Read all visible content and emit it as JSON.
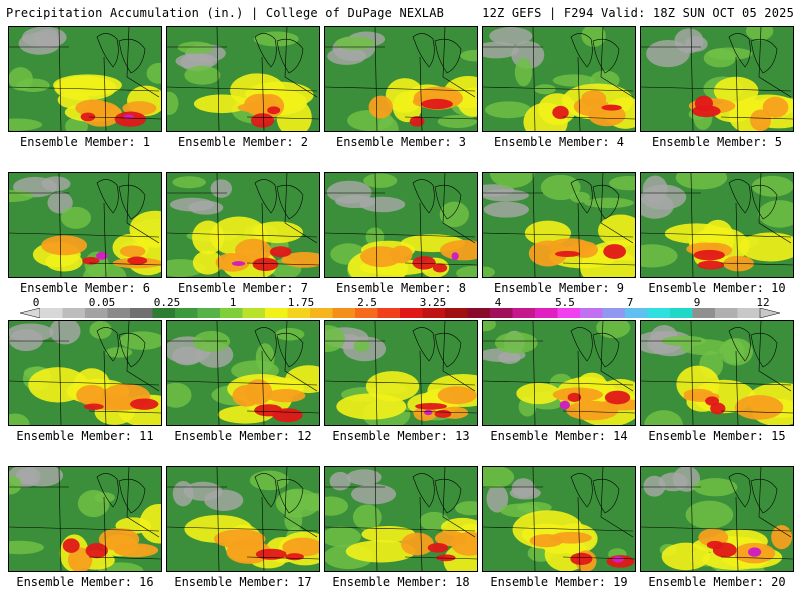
{
  "header": {
    "left": "Precipitation Accumulation (in.) | College of DuPage NEXLAB",
    "right": "12Z GEFS | F294 Valid: 18Z SUN OCT 05 2025"
  },
  "colorbar": {
    "labels": [
      "0",
      "0.05",
      "0.25",
      "1",
      "1.75",
      "2.5",
      "3.25",
      "4",
      "5.5",
      "7",
      "9",
      "12"
    ],
    "colors": [
      "#d8d8d8",
      "#bdbdbd",
      "#a3a3a3",
      "#8a8a8a",
      "#707070",
      "#2f7d32",
      "#3d9a3c",
      "#55b34a",
      "#7fcf3a",
      "#b8e32a",
      "#f2f21a",
      "#f5d31c",
      "#f5b51c",
      "#f58f1c",
      "#f56a1c",
      "#f0401c",
      "#e01818",
      "#c01414",
      "#a01010",
      "#8a0a2a",
      "#a0105a",
      "#c4188c",
      "#e020c0",
      "#f040f0",
      "#c070f0",
      "#9098f0",
      "#60c0f0",
      "#30e0e0",
      "#20d8c8",
      "#909090",
      "#b0b0b0",
      "#c8c8c8"
    ]
  },
  "panels": [
    {
      "label": "Ensemble Member: 1"
    },
    {
      "label": "Ensemble Member: 2"
    },
    {
      "label": "Ensemble Member: 3"
    },
    {
      "label": "Ensemble Member: 4"
    },
    {
      "label": "Ensemble Member: 5"
    },
    {
      "label": "Ensemble Member: 6"
    },
    {
      "label": "Ensemble Member: 7"
    },
    {
      "label": "Ensemble Member: 8"
    },
    {
      "label": "Ensemble Member: 9"
    },
    {
      "label": "Ensemble Member: 10"
    },
    {
      "label": "Ensemble Member: 11"
    },
    {
      "label": "Ensemble Member: 12"
    },
    {
      "label": "Ensemble Member: 13"
    },
    {
      "label": "Ensemble Member: 14"
    },
    {
      "label": "Ensemble Member: 15"
    },
    {
      "label": "Ensemble Member: 16"
    },
    {
      "label": "Ensemble Member: 17"
    },
    {
      "label": "Ensemble Member: 18"
    },
    {
      "label": "Ensemble Member: 19"
    },
    {
      "label": "Ensemble Member: 20"
    }
  ],
  "colors": {
    "base_green": "#3c8f3a",
    "light_green": "#6fbf45",
    "yellow": "#f2f21a",
    "orange": "#f5a01c",
    "red": "#e01818",
    "magenta": "#d020c0",
    "gray": "#a8a8a8"
  }
}
